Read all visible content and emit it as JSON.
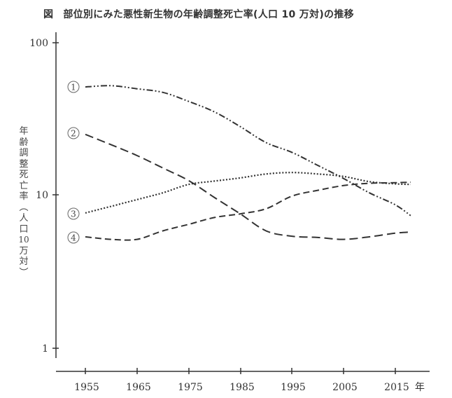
{
  "title": {
    "fig_label": "図",
    "text": "部位別にみた悪性新生物の年齢調整死亡率(人口 10 万対)の推移"
  },
  "chart_data": {
    "type": "line",
    "title": "部位別にみた悪性新生物の年齢調整死亡率(人口 10 万対)の推移",
    "xlabel": "年",
    "ylabel": "年齢調整死亡率(人口10万対)",
    "yscale": "log",
    "ylim": [
      1,
      100
    ],
    "y_ticks": [
      1,
      10,
      100
    ],
    "x_ticks": [
      1955,
      1965,
      1975,
      1985,
      1995,
      2005,
      2015
    ],
    "xlim": [
      1948,
      2022
    ],
    "grid": false,
    "legend": "inline circled numbers at line starts",
    "series": [
      {
        "name": "①",
        "style": "dash-dot-dot",
        "x": [
          1955,
          1960,
          1965,
          1970,
          1975,
          1980,
          1985,
          1990,
          1995,
          2000,
          2005,
          2010,
          2015,
          2018
        ],
        "values": [
          51,
          52,
          49.6,
          47,
          41,
          35,
          28,
          22,
          19,
          15.6,
          12.8,
          10.3,
          8.6,
          7.3
        ]
      },
      {
        "name": "②",
        "style": "long-dash",
        "x": [
          1955,
          1960,
          1965,
          1970,
          1975,
          1980,
          1985,
          1990,
          1995,
          2000,
          2005,
          2010,
          2015,
          2018
        ],
        "values": [
          24.9,
          21.3,
          18.1,
          15,
          12.4,
          9.6,
          7.5,
          5.8,
          5.35,
          5.25,
          5.1,
          5.3,
          5.6,
          5.7
        ]
      },
      {
        "name": "③",
        "style": "dotted",
        "x": [
          1955,
          1960,
          1965,
          1970,
          1975,
          1980,
          1985,
          1990,
          1995,
          2000,
          2005,
          2010,
          2015,
          2018
        ],
        "values": [
          7.6,
          8.4,
          9.3,
          10.3,
          11.7,
          12.3,
          12.9,
          13.7,
          14.0,
          13.7,
          13.2,
          12.2,
          11.8,
          11.7
        ]
      },
      {
        "name": "④",
        "style": "short-dash",
        "x": [
          1955,
          1960,
          1965,
          1970,
          1975,
          1980,
          1985,
          1990,
          1995,
          2000,
          2005,
          2010,
          2015,
          2018
        ],
        "values": [
          5.3,
          5.1,
          5.1,
          5.8,
          6.4,
          7.1,
          7.5,
          8.1,
          9.8,
          10.7,
          11.5,
          11.9,
          12.0,
          12.1
        ]
      }
    ]
  },
  "axis": {
    "y_tick_labels": [
      "100",
      "10",
      "1"
    ],
    "x_tick_labels": [
      "1955",
      "1965",
      "1975",
      "1985",
      "1995",
      "2005",
      "2015"
    ],
    "x_unit": "年",
    "y_label_chars": [
      "年",
      "齢",
      "調",
      "整",
      "死",
      "亡",
      "率",
      "︵",
      "人",
      "口",
      "10",
      "万",
      "対",
      "︶"
    ]
  },
  "series_markers": [
    "①",
    "②",
    "③",
    "④"
  ]
}
